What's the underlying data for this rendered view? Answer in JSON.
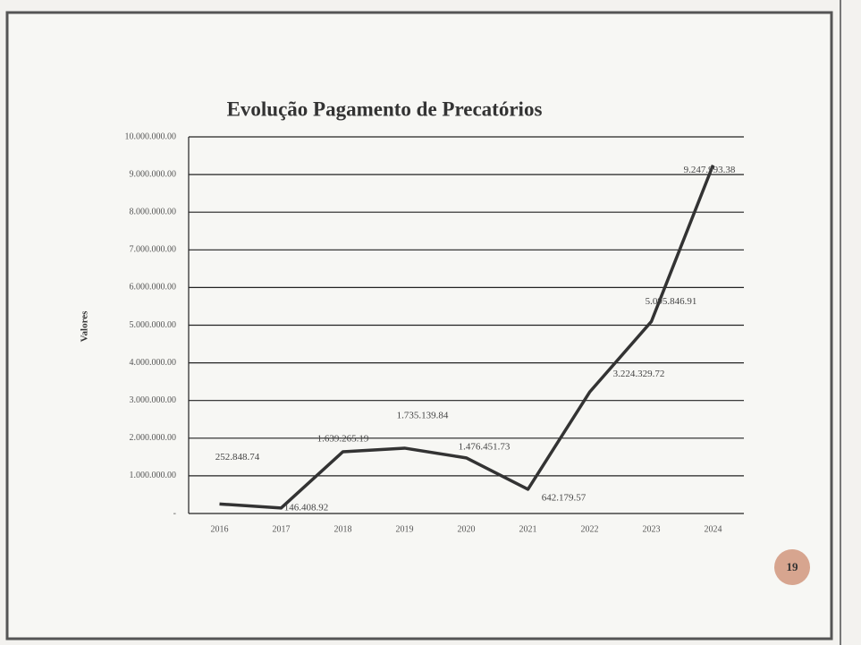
{
  "page_number": "19",
  "chart_data": {
    "type": "line",
    "title": "Evolução Pagamento de Precatórios",
    "y_label": "Valores",
    "categories": [
      "2016",
      "2017",
      "2018",
      "2019",
      "2020",
      "2021",
      "2022",
      "2023",
      "2024"
    ],
    "values": [
      252848.74,
      146408.92,
      1639265.19,
      1735139.84,
      1476451.73,
      642179.57,
      3224329.72,
      5095846.91,
      9247993.38
    ],
    "value_labels": [
      "252.848.74",
      "146.408.92",
      "1.639.265.19",
      "1.735.139.84",
      "1.476.451.73",
      "642.179.57",
      "3.224.329.72",
      "5.095.846.91",
      "9.247.993.38"
    ],
    "color": "#333333",
    "ylim": [
      0,
      10000000
    ],
    "yticks": [
      {
        "value": 0,
        "label": "-"
      },
      {
        "value": 1000000,
        "label": "1.000.000.00"
      },
      {
        "value": 2000000,
        "label": "2.000.000.00"
      },
      {
        "value": 3000000,
        "label": "3.000.000.00"
      },
      {
        "value": 4000000,
        "label": "4.000.000.00"
      },
      {
        "value": 5000000,
        "label": "5.000.000.00"
      },
      {
        "value": 6000000,
        "label": "6.000.000.00"
      },
      {
        "value": 7000000,
        "label": "7.000.000.00"
      },
      {
        "value": 8000000,
        "label": "8.000.000.00"
      },
      {
        "value": 9000000,
        "label": "9.000.000.00"
      },
      {
        "value": 10000000,
        "label": "10.000.000.00"
      }
    ],
    "grid": true
  }
}
